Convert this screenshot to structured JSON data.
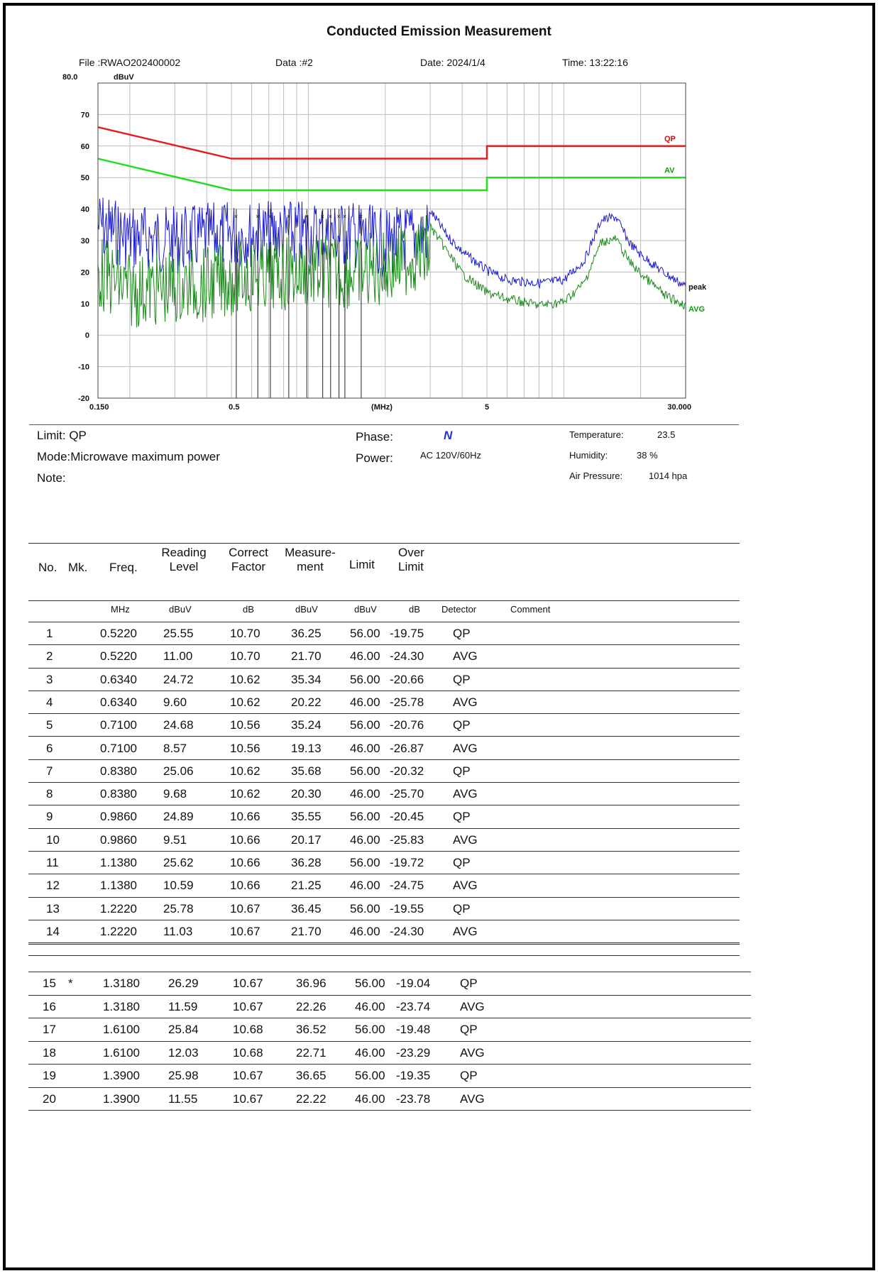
{
  "report": {
    "title": "Conducted Emission Measurement",
    "file": "File :RWAO202400002",
    "data": "Data :#2",
    "date": "Date: 2024/1/4",
    "time": "Time: 13:22:16"
  },
  "chart_data": {
    "type": "line",
    "title": "Conducted Emission Measurement",
    "xlabel": "(MHz)",
    "ylabel": "dBuV",
    "x_scale": "log",
    "xlim": [
      0.15,
      30
    ],
    "ylim": [
      -20,
      80
    ],
    "y_top_label": "80.0",
    "yticks": [
      "70",
      "60",
      "50",
      "40",
      "30",
      "20",
      "10",
      "0",
      "-10",
      "-20"
    ],
    "xtick_labels": [
      "0.150",
      "0.5",
      "(MHz)",
      "5",
      "30.000"
    ],
    "grid": true,
    "series": [
      {
        "name": "QP",
        "color": "#e02020",
        "x": [
          0.15,
          0.5,
          5,
          5,
          30
        ],
        "y": [
          66,
          56,
          56,
          60,
          60
        ]
      },
      {
        "name": "AV",
        "color": "#22dd22",
        "x": [
          0.15,
          0.5,
          5,
          5,
          30
        ],
        "y": [
          56,
          46,
          46,
          50,
          50
        ]
      },
      {
        "name": "peak",
        "color": "#1a1ad0",
        "x": [
          0.15,
          0.2,
          0.3,
          0.4,
          0.5,
          0.7,
          1.0,
          1.5,
          2.0,
          2.5,
          3.0,
          3.5,
          4.0,
          5.0,
          6.0,
          8.0,
          10.0,
          12.0,
          14.0,
          16.0,
          18.0,
          20.0,
          25.0,
          30.0
        ],
        "y": [
          42,
          38,
          37,
          38,
          39,
          39,
          39,
          39,
          36,
          38,
          40,
          32,
          27,
          21,
          18,
          17,
          18,
          24,
          37,
          38,
          30,
          26,
          20,
          16
        ]
      },
      {
        "name": "AVG",
        "color": "#1e8a1e",
        "x": [
          0.15,
          0.2,
          0.3,
          0.4,
          0.5,
          0.7,
          1.0,
          1.5,
          2.0,
          2.5,
          3.0,
          3.5,
          4.0,
          5.0,
          6.0,
          8.0,
          10.0,
          12.0,
          14.0,
          16.0,
          18.0,
          20.0,
          25.0,
          30.0
        ],
        "y": [
          28,
          22,
          23,
          24,
          26,
          27,
          28,
          28,
          29,
          33,
          35,
          27,
          20,
          14,
          12,
          10,
          11,
          17,
          30,
          31,
          24,
          20,
          13,
          10
        ]
      }
    ],
    "marker_freqs": [
      0.522,
      0.634,
      0.71,
      0.838,
      0.986,
      1.138,
      1.222,
      1.318,
      1.61,
      1.39
    ],
    "legend": [
      "QP",
      "AV",
      "peak",
      "AVG"
    ]
  },
  "conditions": {
    "limit": "Limit:  QP",
    "mode": "Mode:Microwave maximum power",
    "note": "Note:",
    "phase_label": "Phase:",
    "phase_value": "N",
    "power_label": "Power:",
    "power_value": "AC 120V/60Hz",
    "temperature_label": "Temperature:",
    "temperature_value": "23.5",
    "humidity_label": "Humidity:",
    "humidity_value": "38 %",
    "pressure_label": "Air Pressure:",
    "pressure_value": "1014 hpa"
  },
  "table": {
    "headers": {
      "no": "No.",
      "mk": "Mk.",
      "freq": "Freq.",
      "reading_1": "Reading",
      "reading_2": "Level",
      "correct_1": "Correct",
      "correct_2": "Factor",
      "measure_1": "Measure-",
      "measure_2": "ment",
      "limit": "Limit",
      "over_1": "Over",
      "over_2": "Limit"
    },
    "units": [
      "MHz",
      "dBuV",
      "dB",
      "dBuV",
      "dBuV",
      "dB",
      "Detector",
      "Comment"
    ],
    "rows_a": [
      [
        "1",
        "",
        "0.5220",
        "25.55",
        "10.70",
        "36.25",
        "56.00",
        "-19.75",
        "QP"
      ],
      [
        "2",
        "",
        "0.5220",
        "11.00",
        "10.70",
        "21.70",
        "46.00",
        "-24.30",
        "AVG"
      ],
      [
        "3",
        "",
        "0.6340",
        "24.72",
        "10.62",
        "35.34",
        "56.00",
        "-20.66",
        "QP"
      ],
      [
        "4",
        "",
        "0.6340",
        "9.60",
        "10.62",
        "20.22",
        "46.00",
        "-25.78",
        "AVG"
      ],
      [
        "5",
        "",
        "0.7100",
        "24.68",
        "10.56",
        "35.24",
        "56.00",
        "-20.76",
        "QP"
      ],
      [
        "6",
        "",
        "0.7100",
        "8.57",
        "10.56",
        "19.13",
        "46.00",
        "-26.87",
        "AVG"
      ],
      [
        "7",
        "",
        "0.8380",
        "25.06",
        "10.62",
        "35.68",
        "56.00",
        "-20.32",
        "QP"
      ],
      [
        "8",
        "",
        "0.8380",
        "9.68",
        "10.62",
        "20.30",
        "46.00",
        "-25.70",
        "AVG"
      ],
      [
        "9",
        "",
        "0.9860",
        "24.89",
        "10.66",
        "35.55",
        "56.00",
        "-20.45",
        "QP"
      ],
      [
        "10",
        "",
        "0.9860",
        "9.51",
        "10.66",
        "20.17",
        "46.00",
        "-25.83",
        "AVG"
      ],
      [
        "11",
        "",
        "1.1380",
        "25.62",
        "10.66",
        "36.28",
        "56.00",
        "-19.72",
        "QP"
      ],
      [
        "12",
        "",
        "1.1380",
        "10.59",
        "10.66",
        "21.25",
        "46.00",
        "-24.75",
        "AVG"
      ],
      [
        "13",
        "",
        "1.2220",
        "25.78",
        "10.67",
        "36.45",
        "56.00",
        "-19.55",
        "QP"
      ],
      [
        "14",
        "",
        "1.2220",
        "11.03",
        "10.67",
        "21.70",
        "46.00",
        "-24.30",
        "AVG"
      ]
    ],
    "rows_b": [
      [
        "15",
        "*",
        "1.3180",
        "26.29",
        "10.67",
        "36.96",
        "56.00",
        "-19.04",
        "QP"
      ],
      [
        "16",
        "",
        "1.3180",
        "11.59",
        "10.67",
        "22.26",
        "46.00",
        "-23.74",
        "AVG"
      ],
      [
        "17",
        "",
        "1.6100",
        "25.84",
        "10.68",
        "36.52",
        "56.00",
        "-19.48",
        "QP"
      ],
      [
        "18",
        "",
        "1.6100",
        "12.03",
        "10.68",
        "22.71",
        "46.00",
        "-23.29",
        "AVG"
      ],
      [
        "19",
        "",
        "1.3900",
        "25.98",
        "10.67",
        "36.65",
        "56.00",
        "-19.35",
        "QP"
      ],
      [
        "20",
        "",
        "1.3900",
        "11.55",
        "10.67",
        "22.22",
        "46.00",
        "-23.78",
        "AVG"
      ]
    ]
  }
}
